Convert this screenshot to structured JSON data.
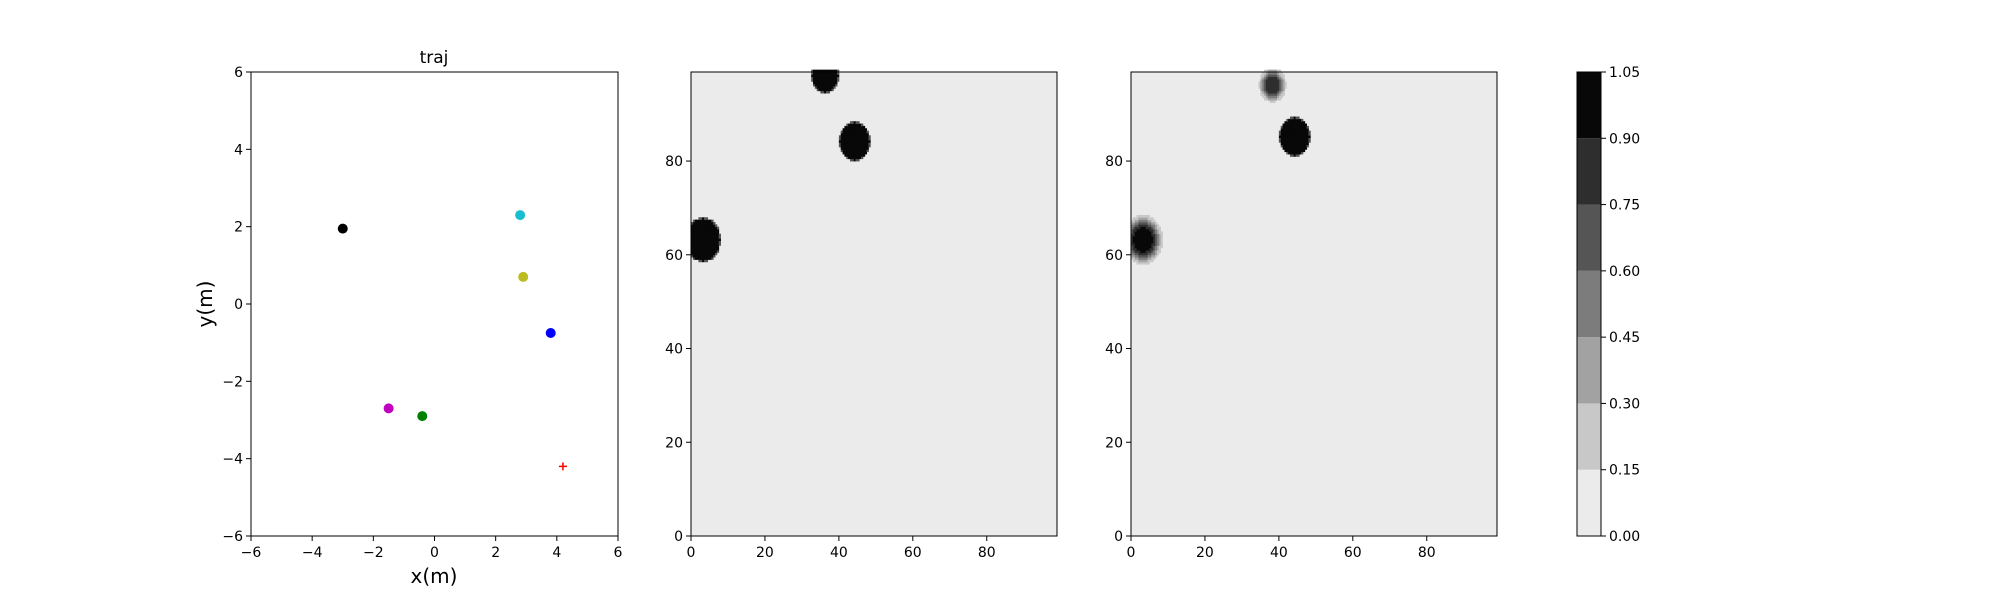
{
  "chart_data": [
    {
      "type": "scatter",
      "title": "traj",
      "xlabel": "x(m)",
      "ylabel": "y(m)",
      "xlim": [
        -6,
        6
      ],
      "ylim": [
        -6,
        6
      ],
      "xticks": [
        -6,
        -4,
        -2,
        0,
        2,
        4,
        6
      ],
      "yticks": [
        -6,
        -4,
        -2,
        0,
        2,
        4,
        6
      ],
      "xtick_labels": [
        "−6",
        "−4",
        "−2",
        "0",
        "2",
        "4",
        "6"
      ],
      "ytick_labels": [
        "−6",
        "−4",
        "−2",
        "0",
        "2",
        "4",
        "6"
      ],
      "grid": false,
      "points": [
        {
          "x": -3.0,
          "y": 1.95,
          "color": "#000000",
          "marker": "circle"
        },
        {
          "x": 2.8,
          "y": 2.3,
          "color": "#17becf",
          "marker": "circle"
        },
        {
          "x": 2.9,
          "y": 0.7,
          "color": "#bcbd22",
          "marker": "circle"
        },
        {
          "x": 3.8,
          "y": -0.75,
          "color": "#0000ff",
          "marker": "circle"
        },
        {
          "x": -1.5,
          "y": -2.7,
          "color": "#bf00bf",
          "marker": "circle"
        },
        {
          "x": -0.4,
          "y": -2.9,
          "color": "#008000",
          "marker": "circle"
        },
        {
          "x": 4.2,
          "y": -4.2,
          "color": "#ff0000",
          "marker": "plus"
        }
      ]
    },
    {
      "type": "heatmap",
      "xlim": [
        0,
        99
      ],
      "ylim": [
        0,
        99
      ],
      "xticks": [
        0,
        20,
        40,
        60,
        80
      ],
      "yticks": [
        0,
        20,
        40,
        60,
        80
      ],
      "background_value": 0.0,
      "blobs": [
        {
          "cx": 3,
          "cy": 63,
          "r": 4.5,
          "value": 1.0,
          "soft": false
        },
        {
          "cx": 36,
          "cy": 98,
          "r": 3.5,
          "value": 1.0,
          "soft": false
        },
        {
          "cx": 44,
          "cy": 84,
          "r": 4.0,
          "value": 1.0,
          "soft": false
        }
      ]
    },
    {
      "type": "heatmap",
      "xlim": [
        0,
        99
      ],
      "ylim": [
        0,
        99
      ],
      "xticks": [
        0,
        20,
        40,
        60,
        80
      ],
      "yticks": [
        0,
        20,
        40,
        60,
        80
      ],
      "background_value": 0.0,
      "blobs": [
        {
          "cx": 3,
          "cy": 63,
          "r": 5.0,
          "value": 1.0,
          "soft": true
        },
        {
          "cx": 38,
          "cy": 96,
          "r": 3.5,
          "value": 0.85,
          "soft": true
        },
        {
          "cx": 44,
          "cy": 85,
          "r": 4.0,
          "value": 1.0,
          "soft": false
        }
      ]
    },
    {
      "type": "colorbar",
      "levels": [
        0.0,
        0.15,
        0.3,
        0.45,
        0.6,
        0.75,
        0.9,
        1.05
      ],
      "tick_labels": [
        "0.00",
        "0.15",
        "0.30",
        "0.45",
        "0.60",
        "0.75",
        "0.90",
        "1.05"
      ],
      "colors": [
        "#ebebeb",
        "#c8c8c8",
        "#a2a2a2",
        "#7c7c7c",
        "#555555",
        "#2e2e2e",
        "#080808"
      ]
    }
  ]
}
